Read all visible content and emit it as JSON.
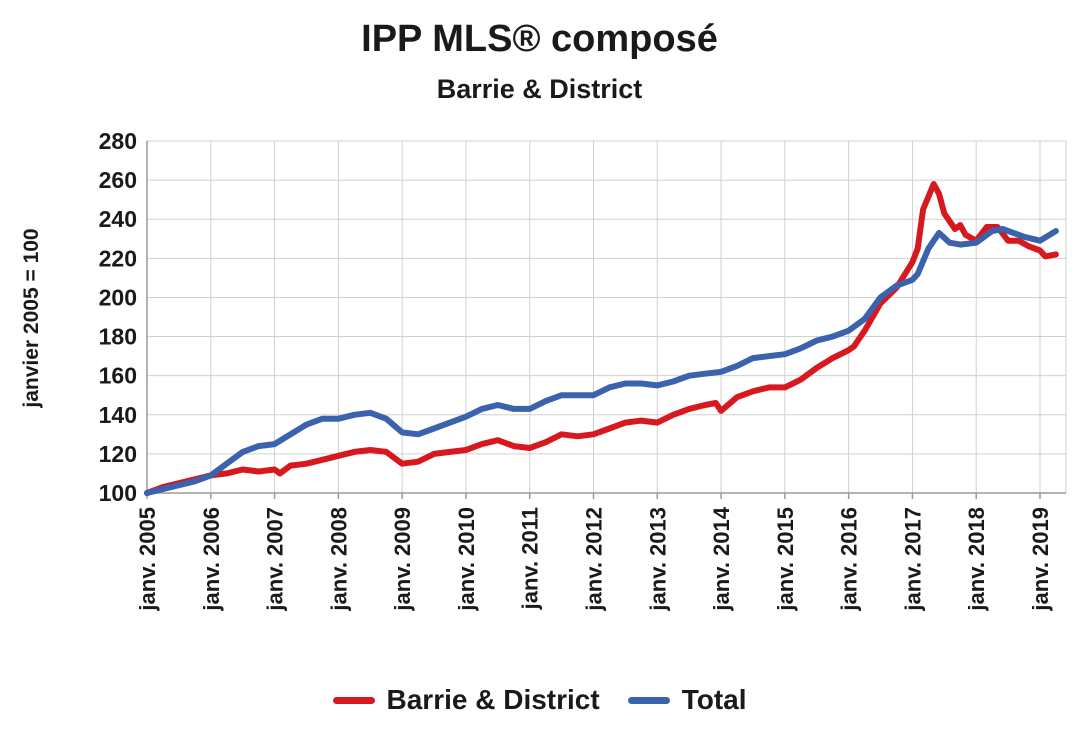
{
  "chart_data": {
    "type": "line",
    "title": "IPP MLS® composé",
    "subtitle": "Barrie & District",
    "ylabel": "janvier 2005 = 100",
    "xlabel": "",
    "ylim": [
      100,
      280
    ],
    "yticks": [
      100,
      120,
      140,
      160,
      180,
      200,
      220,
      240,
      260,
      280
    ],
    "grid": true,
    "legend_position": "bottom",
    "x_tick_labels": [
      "janv. 2005",
      "janv. 2006",
      "janv. 2007",
      "janv. 2008",
      "janv. 2009",
      "janv. 2010",
      "janv. 2011",
      "janv. 2012",
      "janv. 2013",
      "janv. 2014",
      "janv. 2015",
      "janv. 2016",
      "janv. 2017",
      "janv. 2018",
      "janv. 2019"
    ],
    "series": [
      {
        "name": "Barrie & District",
        "color": "#d7191f",
        "points": [
          [
            "2005-01",
            100
          ],
          [
            "2005-04",
            103
          ],
          [
            "2005-07",
            105
          ],
          [
            "2005-10",
            107
          ],
          [
            "2006-01",
            109
          ],
          [
            "2006-04",
            110
          ],
          [
            "2006-07",
            112
          ],
          [
            "2006-10",
            111
          ],
          [
            "2007-01",
            112
          ],
          [
            "2007-02",
            110
          ],
          [
            "2007-04",
            114
          ],
          [
            "2007-07",
            115
          ],
          [
            "2007-10",
            117
          ],
          [
            "2008-01",
            119
          ],
          [
            "2008-04",
            121
          ],
          [
            "2008-07",
            122
          ],
          [
            "2008-10",
            121
          ],
          [
            "2009-01",
            115
          ],
          [
            "2009-04",
            116
          ],
          [
            "2009-07",
            120
          ],
          [
            "2009-10",
            121
          ],
          [
            "2010-01",
            122
          ],
          [
            "2010-04",
            125
          ],
          [
            "2010-07",
            127
          ],
          [
            "2010-10",
            124
          ],
          [
            "2011-01",
            123
          ],
          [
            "2011-04",
            126
          ],
          [
            "2011-07",
            130
          ],
          [
            "2011-10",
            129
          ],
          [
            "2012-01",
            130
          ],
          [
            "2012-04",
            133
          ],
          [
            "2012-07",
            136
          ],
          [
            "2012-10",
            137
          ],
          [
            "2013-01",
            136
          ],
          [
            "2013-04",
            140
          ],
          [
            "2013-07",
            143
          ],
          [
            "2013-10",
            145
          ],
          [
            "2013-12",
            146
          ],
          [
            "2014-01",
            142
          ],
          [
            "2014-04",
            149
          ],
          [
            "2014-07",
            152
          ],
          [
            "2014-10",
            154
          ],
          [
            "2015-01",
            154
          ],
          [
            "2015-04",
            158
          ],
          [
            "2015-07",
            164
          ],
          [
            "2015-10",
            169
          ],
          [
            "2016-01",
            173
          ],
          [
            "2016-02",
            175
          ],
          [
            "2016-04",
            183
          ],
          [
            "2016-07",
            197
          ],
          [
            "2016-10",
            205
          ],
          [
            "2017-01",
            218
          ],
          [
            "2017-02",
            225
          ],
          [
            "2017-03",
            245
          ],
          [
            "2017-05",
            258
          ],
          [
            "2017-06",
            253
          ],
          [
            "2017-07",
            243
          ],
          [
            "2017-09",
            235
          ],
          [
            "2017-10",
            237
          ],
          [
            "2017-11",
            232
          ],
          [
            "2018-01",
            229
          ],
          [
            "2018-03",
            236
          ],
          [
            "2018-05",
            236
          ],
          [
            "2018-07",
            229
          ],
          [
            "2018-09",
            229
          ],
          [
            "2018-11",
            226
          ],
          [
            "2019-01",
            224
          ],
          [
            "2019-02",
            221
          ],
          [
            "2019-04",
            222
          ]
        ]
      },
      {
        "name": "Total",
        "color": "#3a62ad",
        "points": [
          [
            "2005-01",
            100
          ],
          [
            "2005-04",
            102
          ],
          [
            "2005-07",
            104
          ],
          [
            "2005-10",
            106
          ],
          [
            "2006-01",
            109
          ],
          [
            "2006-04",
            115
          ],
          [
            "2006-07",
            121
          ],
          [
            "2006-10",
            124
          ],
          [
            "2007-01",
            125
          ],
          [
            "2007-04",
            130
          ],
          [
            "2007-07",
            135
          ],
          [
            "2007-10",
            138
          ],
          [
            "2008-01",
            138
          ],
          [
            "2008-04",
            140
          ],
          [
            "2008-07",
            141
          ],
          [
            "2008-10",
            138
          ],
          [
            "2009-01",
            131
          ],
          [
            "2009-04",
            130
          ],
          [
            "2009-07",
            133
          ],
          [
            "2009-10",
            136
          ],
          [
            "2010-01",
            139
          ],
          [
            "2010-04",
            143
          ],
          [
            "2010-07",
            145
          ],
          [
            "2010-10",
            143
          ],
          [
            "2011-01",
            143
          ],
          [
            "2011-04",
            147
          ],
          [
            "2011-07",
            150
          ],
          [
            "2011-10",
            150
          ],
          [
            "2012-01",
            150
          ],
          [
            "2012-04",
            154
          ],
          [
            "2012-07",
            156
          ],
          [
            "2012-10",
            156
          ],
          [
            "2013-01",
            155
          ],
          [
            "2013-04",
            157
          ],
          [
            "2013-07",
            160
          ],
          [
            "2013-10",
            161
          ],
          [
            "2014-01",
            162
          ],
          [
            "2014-04",
            165
          ],
          [
            "2014-07",
            169
          ],
          [
            "2014-10",
            170
          ],
          [
            "2015-01",
            171
          ],
          [
            "2015-04",
            174
          ],
          [
            "2015-07",
            178
          ],
          [
            "2015-10",
            180
          ],
          [
            "2016-01",
            183
          ],
          [
            "2016-04",
            189
          ],
          [
            "2016-07",
            200
          ],
          [
            "2016-10",
            206
          ],
          [
            "2017-01",
            209
          ],
          [
            "2017-02",
            212
          ],
          [
            "2017-04",
            225
          ],
          [
            "2017-06",
            233
          ],
          [
            "2017-08",
            228
          ],
          [
            "2017-10",
            227
          ],
          [
            "2018-01",
            228
          ],
          [
            "2018-04",
            234
          ],
          [
            "2018-06",
            235
          ],
          [
            "2018-08",
            233
          ],
          [
            "2018-10",
            231
          ],
          [
            "2019-01",
            229
          ],
          [
            "2019-04",
            234
          ]
        ]
      }
    ]
  }
}
